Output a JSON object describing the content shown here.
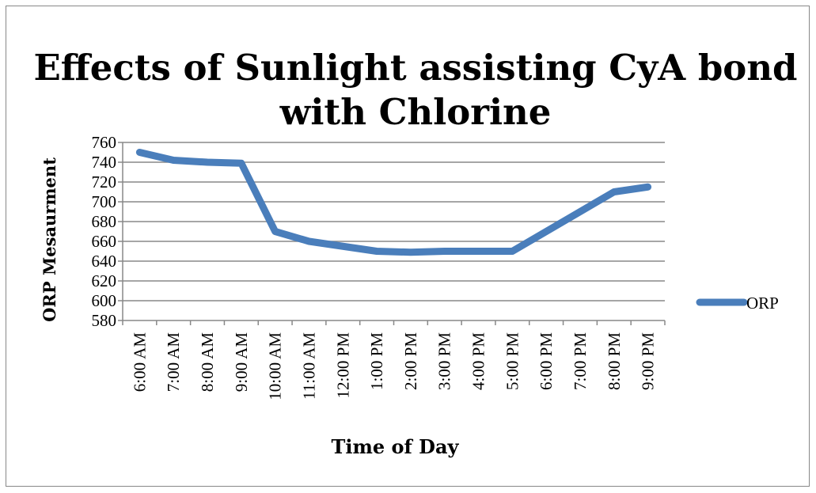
{
  "chart_data": {
    "type": "line",
    "title": "Effects of Sunlight assisting CyA bond with Chlorine",
    "xlabel": "Time of Day",
    "ylabel": "ORP Mesaurment",
    "categories": [
      "6:00 AM",
      "7:00 AM",
      "8:00 AM",
      "9:00 AM",
      "10:00 AM",
      "11:00 AM",
      "12:00 PM",
      "1:00 PM",
      "2:00 PM",
      "3:00 PM",
      "4:00 PM",
      "5:00 PM",
      "6:00 PM",
      "7:00 PM",
      "8:00 PM",
      "9:00 PM"
    ],
    "series": [
      {
        "name": "ORP",
        "values": [
          750,
          742,
          740,
          739,
          670,
          660,
          655,
          650,
          649,
          650,
          650,
          650,
          670,
          690,
          710,
          715
        ],
        "color": "#4a7ebb"
      }
    ],
    "ylim": [
      580,
      760
    ],
    "yticks": [
      580,
      600,
      620,
      640,
      660,
      680,
      700,
      720,
      740,
      760
    ],
    "grid": true,
    "legend": "right"
  }
}
